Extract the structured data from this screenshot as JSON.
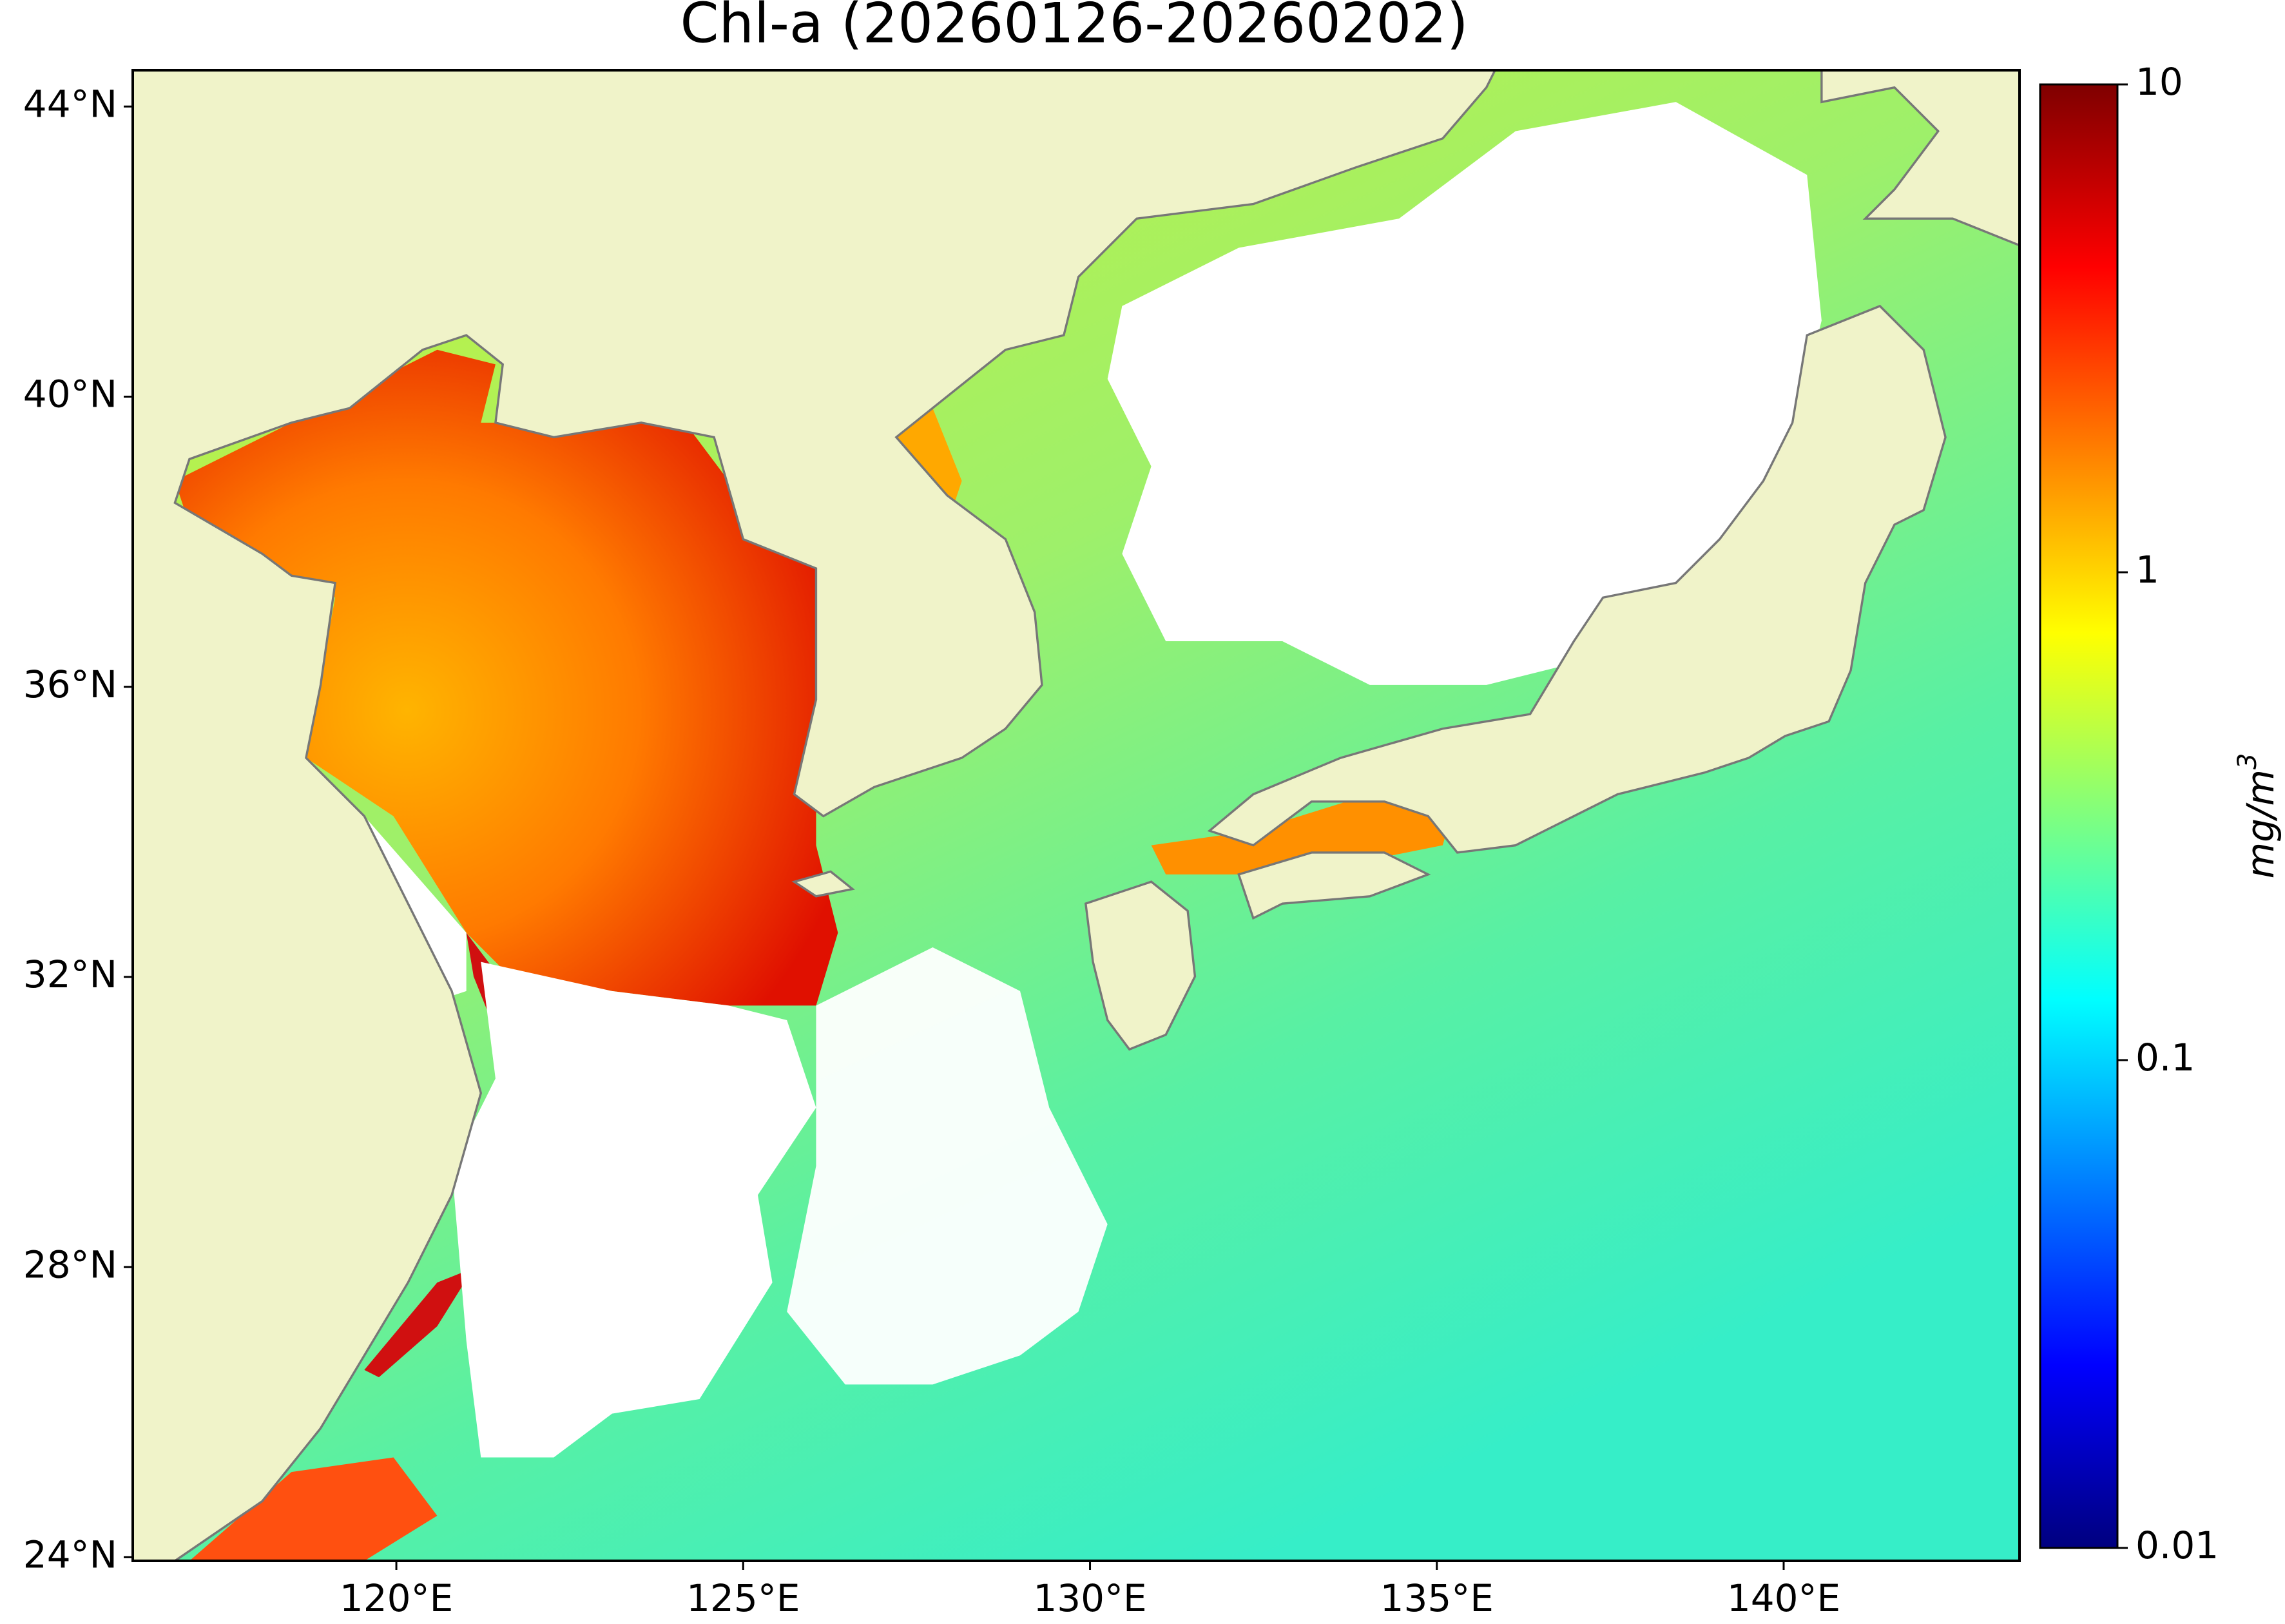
{
  "map": {
    "title": "Chl-a (20260126-20260202)",
    "xlim": [
      116.2,
      143.4
    ],
    "ylim": [
      23.95,
      44.5
    ],
    "xticks": [
      {
        "value": 120,
        "label": "120°E"
      },
      {
        "value": 125,
        "label": "125°E"
      },
      {
        "value": 130,
        "label": "130°E"
      },
      {
        "value": 135,
        "label": "135°E"
      },
      {
        "value": 140,
        "label": "140°E"
      }
    ],
    "yticks": [
      {
        "value": 24,
        "label": "24°N"
      },
      {
        "value": 28,
        "label": "28°N"
      },
      {
        "value": 32,
        "label": "32°N"
      },
      {
        "value": 36,
        "label": "36°N"
      },
      {
        "value": 40,
        "label": "40°N"
      },
      {
        "value": 44,
        "label": "44°N"
      }
    ],
    "colorbar": {
      "label": "mg/m",
      "label_superscript": "3",
      "scale": "log",
      "lim": [
        0.01,
        10
      ],
      "ticks": [
        0.01,
        0.1,
        1,
        10
      ],
      "colors": [
        "#00007f",
        "#0000ff",
        "#007fff",
        "#00ffff",
        "#7fff7f",
        "#ffff00",
        "#ff7f00",
        "#ff0000",
        "#7f0000"
      ]
    }
  }
}
